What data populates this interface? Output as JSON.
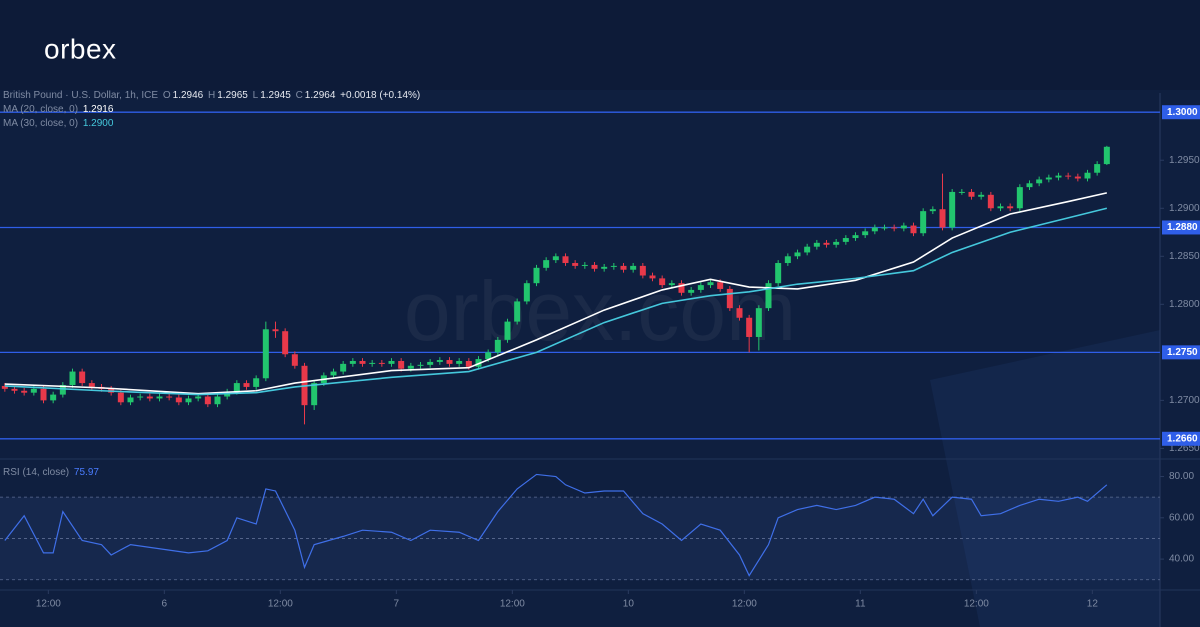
{
  "logo": "orbex",
  "watermark": "orbex.com",
  "chart_data": [
    {
      "type": "candlestick",
      "title": "British Pound · U.S. Dollar, 1h, ICE",
      "legend_keys": [
        "O",
        "H",
        "L",
        "C"
      ],
      "change": "+0.0018 (+0.14%)",
      "up_color": "#22c56e",
      "down_color": "#e8394a",
      "open": [
        1.2715,
        1.2712,
        1.271,
        1.2708,
        1.2712,
        1.27,
        1.2706,
        1.2716,
        1.273,
        1.2718,
        1.2714,
        1.2712,
        1.2708,
        1.2698,
        1.2703,
        1.2704,
        1.2702,
        1.2704,
        1.2703,
        1.2698,
        1.2702,
        1.2704,
        1.2696,
        1.2704,
        1.2709,
        1.2718,
        1.2714,
        1.2723,
        1.2774,
        1.2772,
        1.2748,
        1.2736,
        1.2695,
        1.2718,
        1.2726,
        1.273,
        1.2738,
        1.2741,
        1.2738,
        1.2739,
        1.2738,
        1.2741,
        1.2733,
        1.2736,
        1.2737,
        1.274,
        1.2742,
        1.2738,
        1.2741,
        1.2735,
        1.2743,
        1.275,
        1.2763,
        1.2782,
        1.2803,
        1.2822,
        1.2838,
        1.2846,
        1.285,
        1.2843,
        1.284,
        1.2841,
        1.2837,
        1.2839,
        1.284,
        1.2836,
        1.284,
        1.283,
        1.2827,
        1.282,
        1.2822,
        1.2812,
        1.2815,
        1.282,
        1.2823,
        1.2816,
        1.2796,
        1.2786,
        1.2766,
        1.2796,
        1.2822,
        1.2843,
        1.285,
        1.2854,
        1.286,
        1.2864,
        1.2862,
        1.2865,
        1.2869,
        1.2872,
        1.2876,
        1.288,
        1.288,
        1.2879,
        1.2882,
        1.2874,
        1.2897,
        1.2899,
        1.288,
        1.2917,
        1.2917,
        1.2912,
        1.2914,
        1.29,
        1.2902,
        1.29,
        1.2922,
        1.2926,
        1.293,
        1.2932,
        1.2934,
        1.2933,
        1.2931,
        1.2937,
        1.2946
      ],
      "high": [
        1.2718,
        1.2715,
        1.2713,
        1.2715,
        1.2715,
        1.2709,
        1.2719,
        1.2733,
        1.2733,
        1.2721,
        1.2717,
        1.2715,
        1.2711,
        1.2706,
        1.2707,
        1.2707,
        1.2707,
        1.2707,
        1.2706,
        1.2705,
        1.2707,
        1.2707,
        1.2707,
        1.2712,
        1.2721,
        1.2721,
        1.2726,
        1.2782,
        1.2782,
        1.2775,
        1.2751,
        1.2739,
        1.2721,
        1.2729,
        1.2733,
        1.2741,
        1.2744,
        1.2744,
        1.2742,
        1.2742,
        1.2744,
        1.2744,
        1.2739,
        1.274,
        1.2743,
        1.2745,
        1.2745,
        1.2744,
        1.2744,
        1.2746,
        1.2753,
        1.2766,
        1.2785,
        1.2806,
        1.2825,
        1.2841,
        1.2849,
        1.2853,
        1.2853,
        1.2846,
        1.2844,
        1.2844,
        1.2842,
        1.2843,
        1.2843,
        1.2843,
        1.2843,
        1.2833,
        1.283,
        1.2825,
        1.2825,
        1.2818,
        1.2823,
        1.2826,
        1.2826,
        1.2819,
        1.2799,
        1.2789,
        1.2799,
        1.2825,
        1.2846,
        1.2853,
        1.2857,
        1.2863,
        1.2867,
        1.2867,
        1.2868,
        1.2872,
        1.2875,
        1.2879,
        1.2883,
        1.2883,
        1.2883,
        1.2885,
        1.2885,
        1.29,
        1.2902,
        1.2936,
        1.292,
        1.292,
        1.292,
        1.2917,
        1.2917,
        1.2905,
        1.2905,
        1.2925,
        1.2929,
        1.2933,
        1.2935,
        1.2937,
        1.2937,
        1.2936,
        1.294,
        1.2949,
        1.2965
      ],
      "low": [
        1.2709,
        1.2707,
        1.2705,
        1.2705,
        1.2697,
        1.2697,
        1.2703,
        1.2713,
        1.2715,
        1.2711,
        1.2709,
        1.2705,
        1.2695,
        1.2695,
        1.27,
        1.2699,
        1.2699,
        1.27,
        1.2695,
        1.2695,
        1.2699,
        1.2693,
        1.2693,
        1.2701,
        1.2706,
        1.2711,
        1.2711,
        1.272,
        1.2765,
        1.2745,
        1.2733,
        1.2675,
        1.269,
        1.2715,
        1.2723,
        1.2727,
        1.2735,
        1.2735,
        1.2735,
        1.2735,
        1.2735,
        1.273,
        1.273,
        1.2733,
        1.2734,
        1.2737,
        1.2735,
        1.2735,
        1.2732,
        1.2732,
        1.274,
        1.2747,
        1.276,
        1.2779,
        1.28,
        1.2819,
        1.2835,
        1.2843,
        1.284,
        1.2837,
        1.2837,
        1.2834,
        1.2834,
        1.2836,
        1.2833,
        1.2833,
        1.2827,
        1.2824,
        1.2817,
        1.2817,
        1.2809,
        1.2809,
        1.2812,
        1.2817,
        1.2813,
        1.2793,
        1.2783,
        1.275,
        1.2752,
        1.2793,
        1.2819,
        1.284,
        1.2847,
        1.2851,
        1.2857,
        1.2859,
        1.2859,
        1.2862,
        1.2866,
        1.2869,
        1.2873,
        1.2877,
        1.2876,
        1.2876,
        1.2871,
        1.2871,
        1.2894,
        1.2877,
        1.2877,
        1.2914,
        1.2909,
        1.2909,
        1.2897,
        1.2897,
        1.2897,
        1.2897,
        1.2919,
        1.2923,
        1.2927,
        1.2929,
        1.293,
        1.2928,
        1.2928,
        1.2934,
        1.2945
      ],
      "close": [
        1.2712,
        1.271,
        1.2708,
        1.2712,
        1.27,
        1.2706,
        1.2716,
        1.273,
        1.2718,
        1.2714,
        1.2712,
        1.2708,
        1.2698,
        1.2703,
        1.2704,
        1.2702,
        1.2704,
        1.2703,
        1.2698,
        1.2702,
        1.2704,
        1.2696,
        1.2704,
        1.2709,
        1.2718,
        1.2714,
        1.2723,
        1.2774,
        1.2772,
        1.2748,
        1.2736,
        1.2695,
        1.2718,
        1.2726,
        1.273,
        1.2738,
        1.2741,
        1.2738,
        1.2739,
        1.2738,
        1.2741,
        1.2733,
        1.2736,
        1.2737,
        1.274,
        1.2742,
        1.2738,
        1.2741,
        1.2735,
        1.2743,
        1.275,
        1.2763,
        1.2782,
        1.2803,
        1.2822,
        1.2838,
        1.2846,
        1.285,
        1.2843,
        1.284,
        1.2841,
        1.2837,
        1.2839,
        1.284,
        1.2836,
        1.284,
        1.283,
        1.2827,
        1.282,
        1.2822,
        1.2812,
        1.2815,
        1.282,
        1.2823,
        1.2816,
        1.2796,
        1.2786,
        1.2766,
        1.2796,
        1.2822,
        1.2843,
        1.285,
        1.2854,
        1.286,
        1.2864,
        1.2862,
        1.2865,
        1.2869,
        1.2872,
        1.2876,
        1.288,
        1.288,
        1.2879,
        1.2882,
        1.2874,
        1.2897,
        1.2899,
        1.288,
        1.2917,
        1.2917,
        1.2912,
        1.2914,
        1.29,
        1.2902,
        1.29,
        1.2922,
        1.2926,
        1.293,
        1.2932,
        1.2934,
        1.2933,
        1.2931,
        1.2937,
        1.2946,
        1.2964
      ],
      "overlays": [
        {
          "name": "MA (20, close, 0)",
          "legend_value": "1.2916",
          "color": "#ffffff",
          "x": [
            0,
            10,
            20,
            26,
            30,
            40,
            48,
            55,
            62,
            68,
            73,
            77,
            82,
            88,
            94,
            98,
            104,
            110,
            114
          ],
          "values": [
            1.2717,
            1.2713,
            1.2707,
            1.271,
            1.2718,
            1.2731,
            1.2734,
            1.2763,
            1.2794,
            1.2815,
            1.2826,
            1.2818,
            1.2816,
            1.2825,
            1.2844,
            1.2869,
            1.2894,
            1.2907,
            1.2916
          ]
        },
        {
          "name": "MA (30, close, 0)",
          "legend_value": "1.2900",
          "color": "#45c8dc",
          "x": [
            0,
            10,
            20,
            26,
            30,
            40,
            48,
            55,
            62,
            68,
            73,
            77,
            82,
            88,
            94,
            98,
            104,
            110,
            114
          ],
          "values": [
            1.2715,
            1.271,
            1.2706,
            1.2708,
            1.2714,
            1.2724,
            1.273,
            1.275,
            1.2781,
            1.2801,
            1.2809,
            1.2813,
            1.2821,
            1.2827,
            1.2835,
            1.2854,
            1.2875,
            1.289,
            1.29
          ]
        }
      ],
      "xlim": [
        -0.5,
        119.5
      ],
      "xticks": [
        {
          "value": 4.5,
          "label": "12:00"
        },
        {
          "value": 16.5,
          "label": "6"
        },
        {
          "value": 28.5,
          "label": "12:00"
        },
        {
          "value": 40.5,
          "label": "7"
        },
        {
          "value": 52.5,
          "label": "12:00"
        },
        {
          "value": 64.5,
          "label": "10"
        },
        {
          "value": 76.5,
          "label": "12:00"
        },
        {
          "value": 88.5,
          "label": "11"
        },
        {
          "value": 100.5,
          "label": "12:00"
        },
        {
          "value": 112.5,
          "label": "12"
        }
      ],
      "ylim": [
        1.264,
        1.302
      ],
      "yticks": [
        {
          "value": 1.295,
          "label": "1.2950"
        },
        {
          "value": 1.29,
          "label": "1.2900"
        },
        {
          "value": 1.285,
          "label": "1.2850"
        },
        {
          "value": 1.28,
          "label": "1.2800"
        },
        {
          "value": 1.27,
          "label": "1.2700"
        },
        {
          "value": 1.265,
          "label": "1.2650"
        }
      ],
      "levels": [
        {
          "value": 1.3,
          "label": "1.3000"
        },
        {
          "value": 1.288,
          "label": "1.2880"
        },
        {
          "value": 1.275,
          "label": "1.2750"
        },
        {
          "value": 1.266,
          "label": "1.2660"
        }
      ],
      "level_color": "#2f5ee8",
      "grid": false
    },
    {
      "type": "line",
      "title": "RSI (14, close)",
      "color": "#3f6fe8",
      "x": [
        0,
        2,
        4,
        5,
        6,
        8,
        10,
        11,
        13,
        16,
        19,
        21,
        23,
        24,
        26,
        27,
        28,
        30,
        31,
        32,
        35,
        37,
        40,
        42,
        44,
        47,
        49,
        51,
        53,
        55,
        57,
        58,
        60,
        62,
        64,
        66,
        68,
        70,
        72,
        74,
        76,
        77,
        79,
        80,
        82,
        84,
        86,
        88,
        90,
        92,
        94,
        95,
        96,
        98,
        100,
        101,
        103,
        105,
        107,
        109,
        111,
        112,
        114
      ],
      "values": [
        49,
        61,
        43,
        43,
        63,
        49,
        47,
        42,
        47,
        45,
        43,
        44,
        49,
        60,
        57,
        74,
        73,
        54,
        36,
        47,
        51,
        54,
        53,
        49,
        54,
        53,
        49,
        63,
        74,
        81,
        80,
        76,
        72,
        73,
        73,
        62,
        57,
        49,
        57,
        54,
        42,
        32,
        47,
        60,
        64,
        66,
        64,
        66,
        70,
        69,
        62,
        69,
        61,
        70,
        69,
        61,
        62,
        66,
        69,
        68,
        70,
        68,
        75.97
      ],
      "xlim": [
        -0.5,
        119.5
      ],
      "ylim": [
        26,
        88
      ],
      "yticks": [
        {
          "value": 80,
          "label": "80.00"
        },
        {
          "value": 60,
          "label": "60.00"
        },
        {
          "value": 40,
          "label": "40.00"
        }
      ],
      "hlines": [
        70,
        50,
        30
      ],
      "band": [
        30,
        70
      ]
    }
  ]
}
